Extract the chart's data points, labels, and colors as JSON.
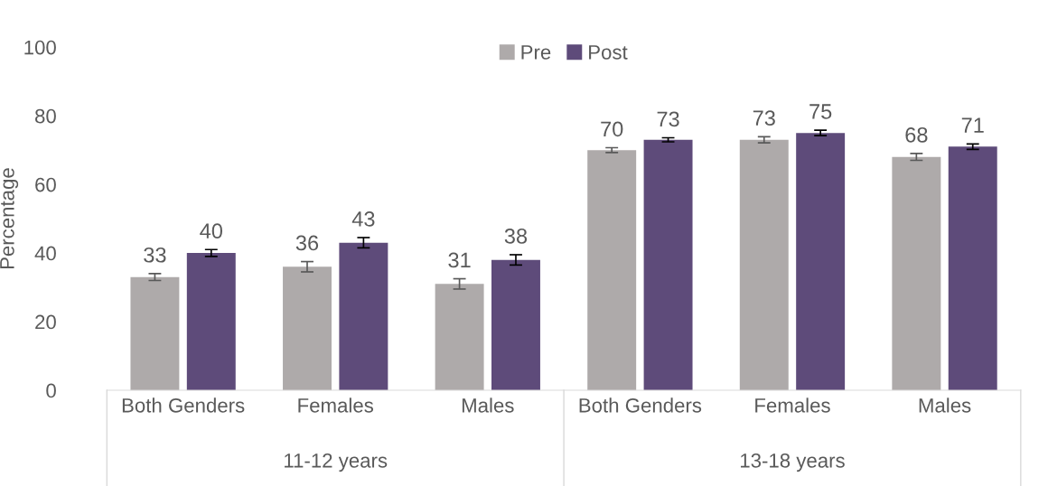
{
  "chart_data": {
    "type": "bar",
    "ylabel": "Percentage",
    "categories": [
      "Both Genders",
      "Females",
      "Males",
      "Both Genders",
      "Females",
      "Males"
    ],
    "annotations": [
      "11-12 years",
      "13-18 years"
    ],
    "series": [
      {
        "name": "Pre",
        "color": "#aeaaaa",
        "values": [
          33,
          36,
          31,
          70,
          73,
          68
        ],
        "errors": [
          1,
          1.5,
          1.5,
          0.7,
          0.9,
          1
        ]
      },
      {
        "name": "Post",
        "color": "#5e4b7a",
        "values": [
          40,
          43,
          38,
          73,
          75,
          71
        ],
        "errors": [
          1,
          1.5,
          1.5,
          0.6,
          0.8,
          0.8
        ]
      }
    ],
    "ylim": [
      0,
      100
    ],
    "yticks": [
      0,
      20,
      40,
      60,
      80,
      100
    ],
    "data_labels": true,
    "legend": "top",
    "grid": false
  }
}
